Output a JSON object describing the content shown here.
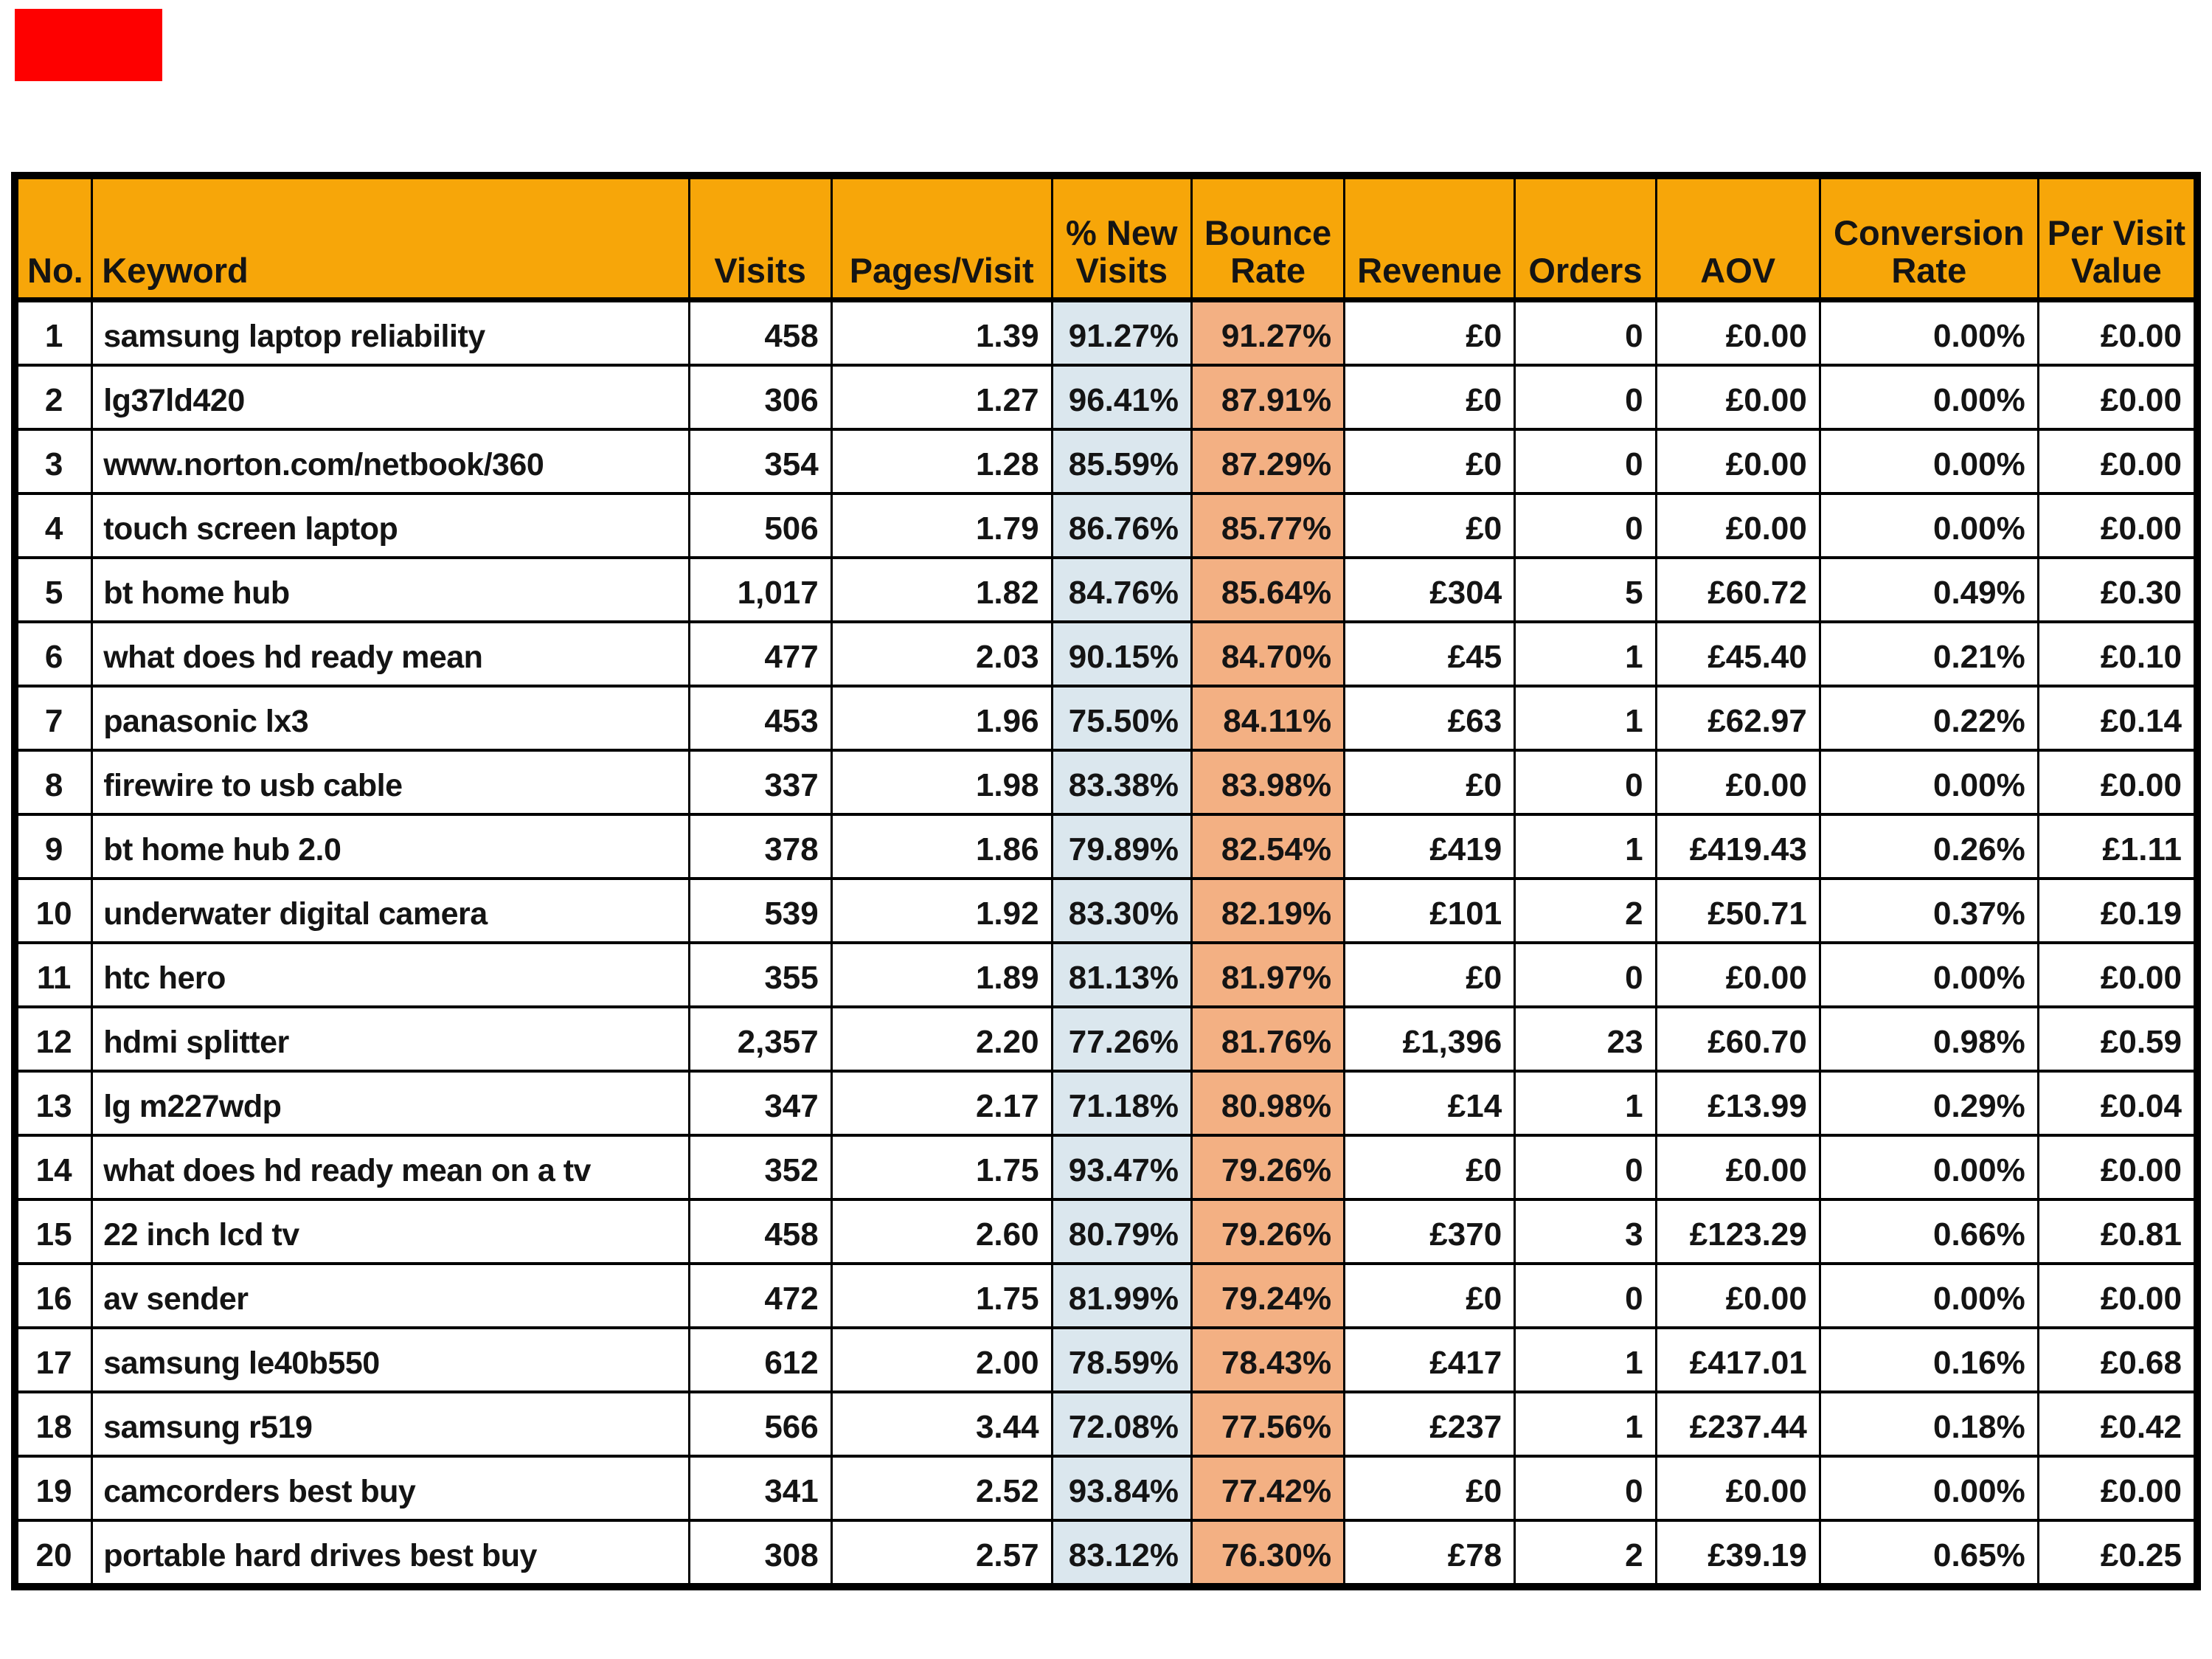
{
  "marker": {
    "color": "#FE0000"
  },
  "colors": {
    "header_bg": "#F7A609",
    "new_visits_col_bg": "#DBE7EE",
    "bounce_rate_col_bg": "#F3B083",
    "border": "#000000",
    "text": "#141414",
    "page_bg": "#FFFFFF"
  },
  "table": {
    "header": [
      {
        "label": "No."
      },
      {
        "label": "Keyword"
      },
      {
        "label": "Visits"
      },
      {
        "label": "Pages/Visit"
      },
      {
        "label": "% New\nVisits"
      },
      {
        "label": "Bounce\nRate"
      },
      {
        "label": "Revenue"
      },
      {
        "label": "Orders"
      },
      {
        "label": "AOV"
      },
      {
        "label": "Conversion\nRate"
      },
      {
        "label": "Per Visit\nValue"
      }
    ]
  },
  "chart_data": {
    "type": "table",
    "title": "",
    "columns": [
      "No.",
      "Keyword",
      "Visits",
      "Pages/Visit",
      "% New Visits",
      "Bounce Rate",
      "Revenue",
      "Orders",
      "AOV",
      "Conversion Rate",
      "Per Visit Value"
    ],
    "rows": [
      [
        "1",
        "samsung laptop reliability",
        "458",
        "1.39",
        "91.27%",
        "91.27%",
        "£0",
        "0",
        "£0.00",
        "0.00%",
        "£0.00"
      ],
      [
        "2",
        "lg37ld420",
        "306",
        "1.27",
        "96.41%",
        "87.91%",
        "£0",
        "0",
        "£0.00",
        "0.00%",
        "£0.00"
      ],
      [
        "3",
        "www.norton.com/netbook/360",
        "354",
        "1.28",
        "85.59%",
        "87.29%",
        "£0",
        "0",
        "£0.00",
        "0.00%",
        "£0.00"
      ],
      [
        "4",
        "touch screen laptop",
        "506",
        "1.79",
        "86.76%",
        "85.77%",
        "£0",
        "0",
        "£0.00",
        "0.00%",
        "£0.00"
      ],
      [
        "5",
        "bt home hub",
        "1,017",
        "1.82",
        "84.76%",
        "85.64%",
        "£304",
        "5",
        "£60.72",
        "0.49%",
        "£0.30"
      ],
      [
        "6",
        "what does hd ready mean",
        "477",
        "2.03",
        "90.15%",
        "84.70%",
        "£45",
        "1",
        "£45.40",
        "0.21%",
        "£0.10"
      ],
      [
        "7",
        "panasonic lx3",
        "453",
        "1.96",
        "75.50%",
        "84.11%",
        "£63",
        "1",
        "£62.97",
        "0.22%",
        "£0.14"
      ],
      [
        "8",
        "firewire to usb cable",
        "337",
        "1.98",
        "83.38%",
        "83.98%",
        "£0",
        "0",
        "£0.00",
        "0.00%",
        "£0.00"
      ],
      [
        "9",
        "bt home hub 2.0",
        "378",
        "1.86",
        "79.89%",
        "82.54%",
        "£419",
        "1",
        "£419.43",
        "0.26%",
        "£1.11"
      ],
      [
        "10",
        "underwater digital camera",
        "539",
        "1.92",
        "83.30%",
        "82.19%",
        "£101",
        "2",
        "£50.71",
        "0.37%",
        "£0.19"
      ],
      [
        "11",
        "htc hero",
        "355",
        "1.89",
        "81.13%",
        "81.97%",
        "£0",
        "0",
        "£0.00",
        "0.00%",
        "£0.00"
      ],
      [
        "12",
        "hdmi splitter",
        "2,357",
        "2.20",
        "77.26%",
        "81.76%",
        "£1,396",
        "23",
        "£60.70",
        "0.98%",
        "£0.59"
      ],
      [
        "13",
        "lg m227wdp",
        "347",
        "2.17",
        "71.18%",
        "80.98%",
        "£14",
        "1",
        "£13.99",
        "0.29%",
        "£0.04"
      ],
      [
        "14",
        "what does hd ready mean on a tv",
        "352",
        "1.75",
        "93.47%",
        "79.26%",
        "£0",
        "0",
        "£0.00",
        "0.00%",
        "£0.00"
      ],
      [
        "15",
        "22 inch lcd tv",
        "458",
        "2.60",
        "80.79%",
        "79.26%",
        "£370",
        "3",
        "£123.29",
        "0.66%",
        "£0.81"
      ],
      [
        "16",
        "av sender",
        "472",
        "1.75",
        "81.99%",
        "79.24%",
        "£0",
        "0",
        "£0.00",
        "0.00%",
        "£0.00"
      ],
      [
        "17",
        "samsung le40b550",
        "612",
        "2.00",
        "78.59%",
        "78.43%",
        "£417",
        "1",
        "£417.01",
        "0.16%",
        "£0.68"
      ],
      [
        "18",
        "samsung r519",
        "566",
        "3.44",
        "72.08%",
        "77.56%",
        "£237",
        "1",
        "£237.44",
        "0.18%",
        "£0.42"
      ],
      [
        "19",
        "camcorders best buy",
        "341",
        "2.52",
        "93.84%",
        "77.42%",
        "£0",
        "0",
        "£0.00",
        "0.00%",
        "£0.00"
      ],
      [
        "20",
        "portable hard drives best buy",
        "308",
        "2.57",
        "83.12%",
        "76.30%",
        "£78",
        "2",
        "£39.19",
        "0.65%",
        "£0.25"
      ]
    ]
  }
}
